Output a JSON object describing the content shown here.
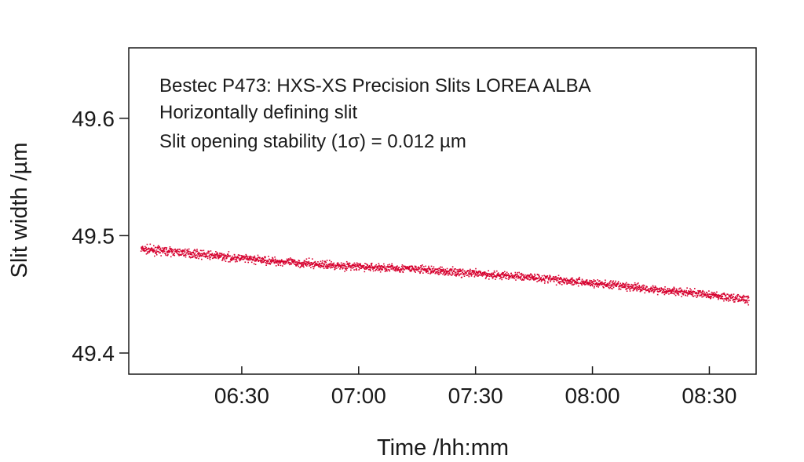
{
  "chart_data": {
    "type": "scatter",
    "title": "",
    "xlabel": "Time /hh:mm",
    "ylabel": "Slit width /µm",
    "annotations": [
      "Bestec P473: HXS-XS Precision Slits LOREA ALBA",
      "Horizontally defining slit",
      "Slit opening stability (1σ) = 0.012 µm"
    ],
    "x_tick_labels": [
      "06:30",
      "07:00",
      "07:30",
      "08:00",
      "08:30"
    ],
    "y_tick_labels": [
      "49.4",
      "49.5",
      "49.6"
    ],
    "xlim": [
      "06:01",
      "08:42"
    ],
    "ylim": [
      49.382,
      49.66
    ],
    "grid": false,
    "legend": "none",
    "series": [
      {
        "color": "#d6002e",
        "trend": [
          {
            "x": "06:04",
            "y": 49.489
          },
          {
            "x": "06:15",
            "y": 49.486
          },
          {
            "x": "06:30",
            "y": 49.481
          },
          {
            "x": "06:45",
            "y": 49.477
          },
          {
            "x": "07:00",
            "y": 49.474
          },
          {
            "x": "07:15",
            "y": 49.472
          },
          {
            "x": "07:30",
            "y": 49.468
          },
          {
            "x": "07:45",
            "y": 49.465
          },
          {
            "x": "08:00",
            "y": 49.46
          },
          {
            "x": "08:15",
            "y": 49.455
          },
          {
            "x": "08:30",
            "y": 49.45
          },
          {
            "x": "08:40",
            "y": 49.446
          }
        ],
        "scatter": 0.004
      }
    ]
  }
}
